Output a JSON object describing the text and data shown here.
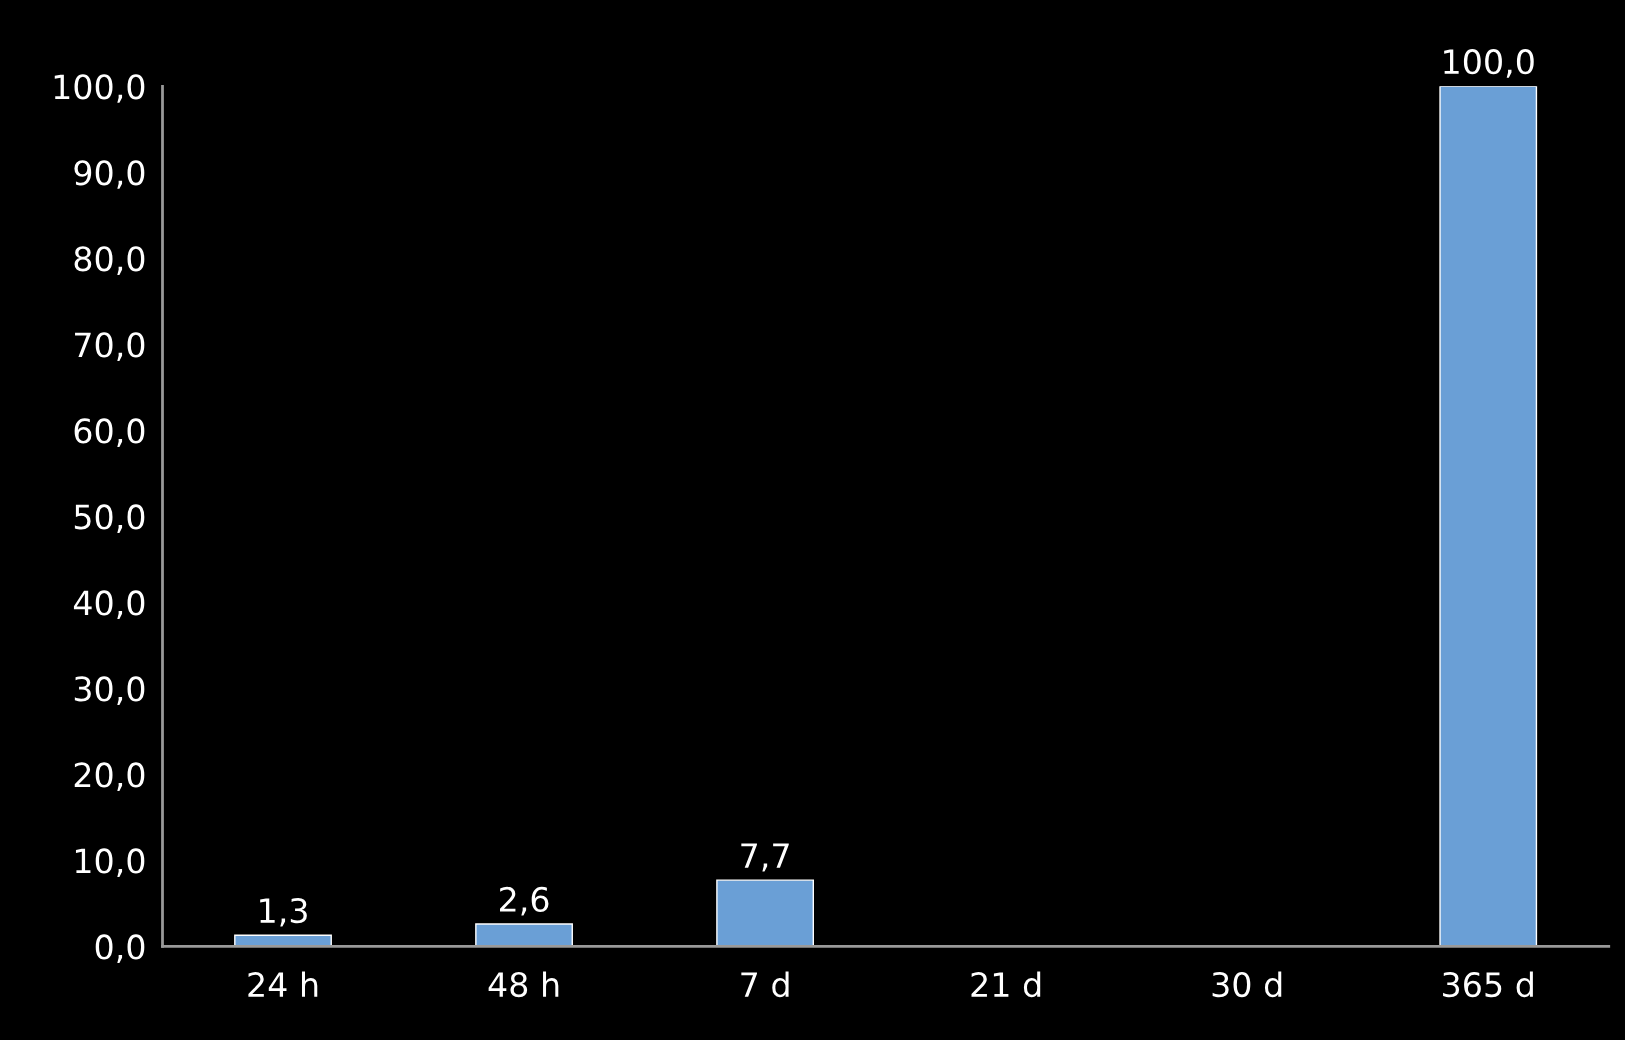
{
  "chart_data": {
    "type": "bar",
    "categories": [
      "24 h",
      "48 h",
      "7 d",
      "21 d",
      "30 d",
      "365 d"
    ],
    "values": [
      1.3,
      2.6,
      7.7,
      null,
      null,
      100.0
    ],
    "value_labels": [
      "1,3",
      "2,6",
      "7,7",
      null,
      null,
      "100,0"
    ],
    "color": "#6a9fd6",
    "ylim": [
      0,
      100
    ],
    "yticks": [
      {
        "value": 0,
        "label": "0,0"
      },
      {
        "value": 10,
        "label": "10,0"
      },
      {
        "value": 20,
        "label": "20,0"
      },
      {
        "value": 30,
        "label": "30,0"
      },
      {
        "value": 40,
        "label": "40,0"
      },
      {
        "value": 50,
        "label": "50,0"
      },
      {
        "value": 60,
        "label": "60,0"
      },
      {
        "value": 70,
        "label": "70,0"
      },
      {
        "value": 80,
        "label": "80,0"
      },
      {
        "value": 90,
        "label": "90,0"
      },
      {
        "value": 100,
        "label": "100,0"
      }
    ],
    "grid": false,
    "legend": false
  }
}
